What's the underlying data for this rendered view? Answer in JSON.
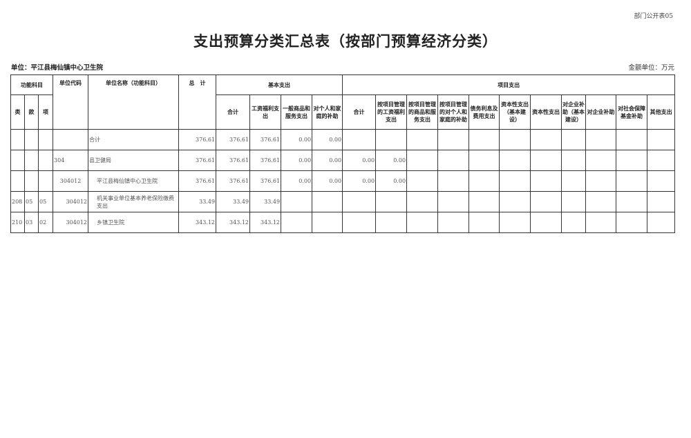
{
  "form_code": "部门公开表05",
  "title": "支出预算分类汇总表（按部门预算经济分类）",
  "unit": "单位：平江县梅仙镇中心卫生院",
  "money_unit": "金额单位：万元",
  "headers": {
    "func_subject": "功能科目",
    "lei": "类",
    "kuan": "款",
    "xiang": "项",
    "unit_code": "单位代码",
    "unit_name": "单位名称（功能科目）",
    "total": "总　计",
    "basic": "基本支出",
    "project": "项目支出",
    "basic_cols": [
      "合计",
      "工资福利支出",
      "一般商品和服务支出",
      "对个人和家庭的补助"
    ],
    "project_cols": [
      "合计",
      "按项目管理的工资福利支出",
      "按项目管理的商品和服务支出",
      "按项目管理的对个人和家庭的补助",
      "债务利息及费用支出",
      "资本性支出（基本建设）",
      "资本性支出",
      "对企业补助（基本建设）",
      "对企业补助",
      "对社会保障基金补助",
      "其他支出"
    ]
  },
  "rows": [
    {
      "lei": "",
      "kuan": "",
      "xiang": "",
      "code": "",
      "name": "合计",
      "total": "376.61",
      "b": [
        "376.61",
        "376.61",
        "0.00",
        "0.00"
      ],
      "p": [
        "",
        "",
        "",
        "",
        "",
        "",
        "",
        "",
        "",
        "",
        ""
      ]
    },
    {
      "lei": "",
      "kuan": "",
      "xiang": "",
      "code": "304",
      "name": "县卫健局",
      "total": "376.61",
      "b": [
        "376.61",
        "376.61",
        "0.00",
        "0.00"
      ],
      "p": [
        "0.00",
        "0.00",
        "",
        "",
        "",
        "",
        "",
        "",
        "",
        "",
        ""
      ]
    },
    {
      "lei": "",
      "kuan": "",
      "xiang": "",
      "code": "304012",
      "name": "平江县梅仙镇中心卫生院",
      "total": "376.61",
      "b": [
        "376.61",
        "376.61",
        "0.00",
        "0.00"
      ],
      "p": [
        "0.00",
        "0.00",
        "",
        "",
        "",
        "",
        "",
        "",
        "",
        "",
        ""
      ]
    },
    {
      "lei": "208",
      "kuan": "05",
      "xiang": "05",
      "code": "304012",
      "name": "机关事业单位基本养老保险缴费支出",
      "total": "33.49",
      "b": [
        "33.49",
        "33.49",
        "",
        ""
      ],
      "p": [
        "",
        "",
        "",
        "",
        "",
        "",
        "",
        "",
        "",
        "",
        ""
      ]
    },
    {
      "lei": "210",
      "kuan": "03",
      "xiang": "02",
      "code": "304012",
      "name": "乡镇卫生院",
      "total": "343.12",
      "b": [
        "343.12",
        "343.12",
        "",
        ""
      ],
      "p": [
        "",
        "",
        "",
        "",
        "",
        "",
        "",
        "",
        "",
        "",
        ""
      ]
    }
  ]
}
